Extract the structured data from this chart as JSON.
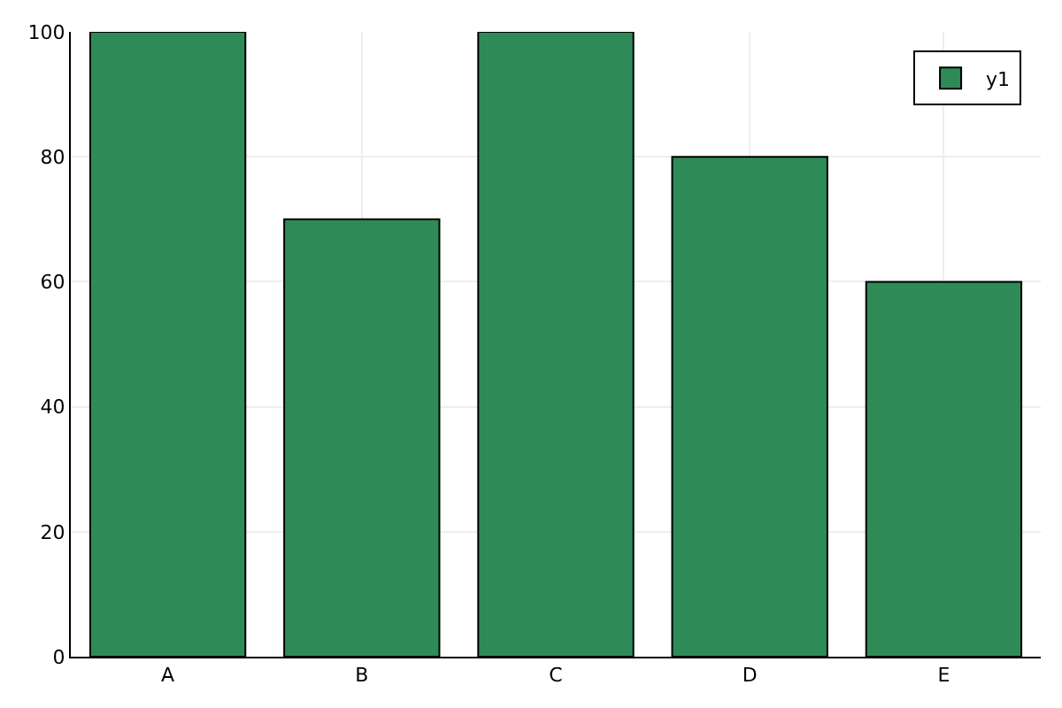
{
  "chart_data": {
    "type": "bar",
    "categories": [
      "A",
      "B",
      "C",
      "D",
      "E"
    ],
    "series": [
      {
        "name": "y1",
        "color": "#2e8b57",
        "values": [
          100,
          70,
          100,
          80,
          60
        ]
      }
    ],
    "ylim": [
      0,
      100
    ],
    "yticks": [
      0,
      20,
      40,
      60,
      80,
      100
    ],
    "grid": true,
    "legend": "top right"
  }
}
